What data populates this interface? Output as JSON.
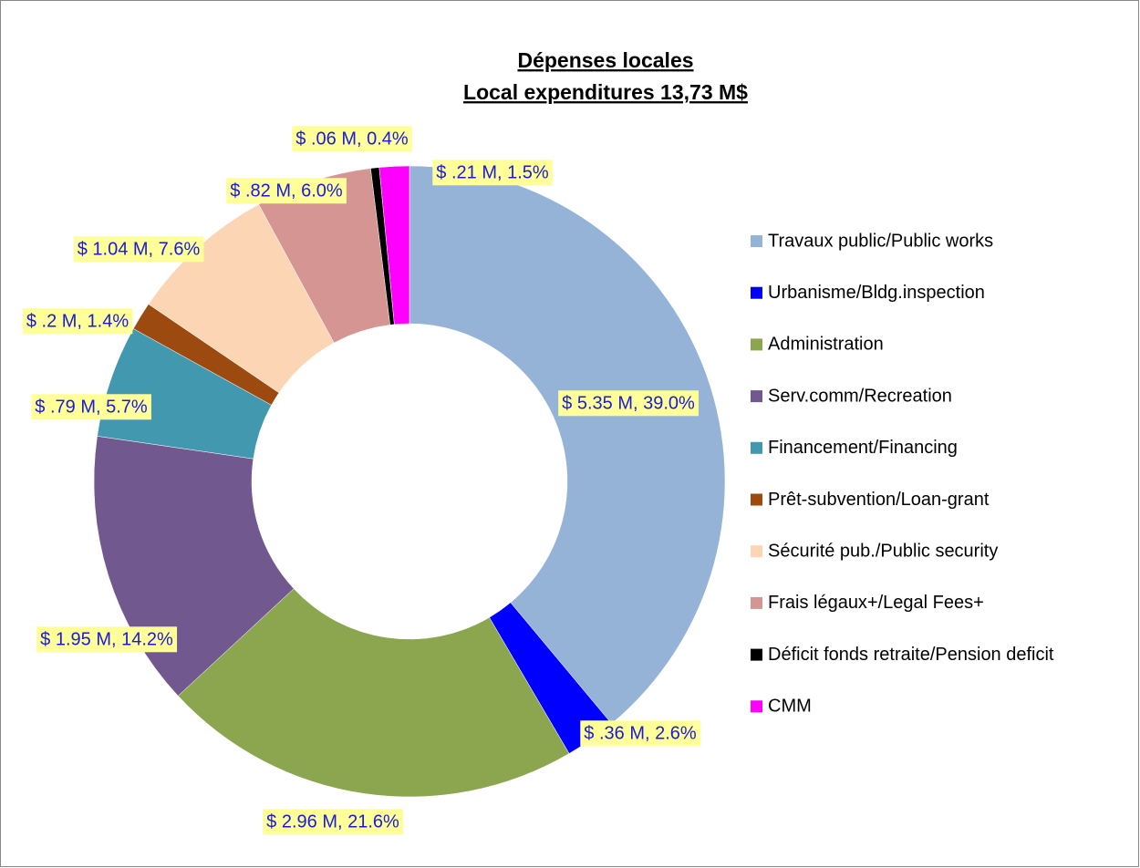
{
  "chart_data": {
    "type": "donut",
    "title": "Dépenses locales",
    "subtitle": "Local expenditures 13,73 M$",
    "categories": [
      "Travaux public/Public works",
      "Urbanisme/Bldg.inspection",
      "Administration",
      "Serv.comm/Recreation",
      "Financement/Financing",
      "Prêt-subvention/Loan-grant",
      "Sécurité pub./Public security",
      "Frais légaux+/Legal Fees+",
      "Déficit fonds retraite/Pension deficit",
      "CMM"
    ],
    "values": [
      5.35,
      0.36,
      2.96,
      1.95,
      0.79,
      0.2,
      1.04,
      0.82,
      0.06,
      0.21
    ],
    "value_labels": [
      "$ 5.35 M, 39.0%",
      "$ .36 M, 2.6%",
      "$ 2.96 M, 21.6%",
      "$ 1.95 M, 14.2%",
      "$ .79 M, 5.7%",
      "$ .2 M, 1.4%",
      "$ 1.04 M, 7.6%",
      "$ .82 M, 6.0%",
      "$ .06 M, 0.4%",
      "$ .21 M, 1.5%"
    ],
    "colors": [
      "#95b3d7",
      "#0000ff",
      "#8ba64f",
      "#71588f",
      "#4198af",
      "#9c4a0f",
      "#fcd5b4",
      "#d49593",
      "#000000",
      "#ff00ff"
    ],
    "legend": "right"
  }
}
